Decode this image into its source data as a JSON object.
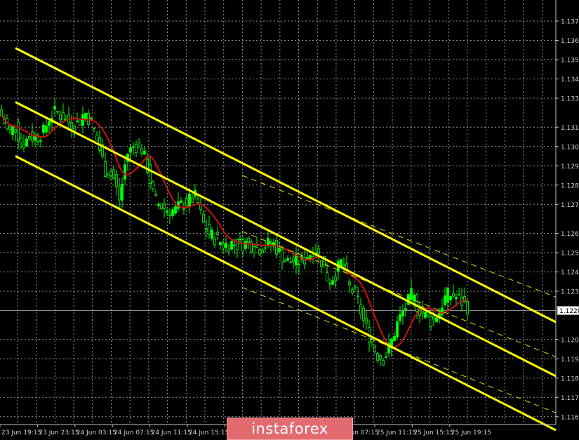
{
  "chart_data": {
    "type": "candlestick",
    "title": "",
    "xlabel": "",
    "ylabel": "",
    "ylim": [
      1.1162,
      1.1381
    ],
    "grid": true,
    "y_tick_labels": [
      "1.1370",
      "1.1360",
      "1.1350",
      "1.1340",
      "1.1330",
      "1.1315",
      "1.1305",
      "1.1295",
      "1.1285",
      "1.1275",
      "1.1260",
      "1.1250",
      "1.1240",
      "1.1230",
      "1.1205",
      "1.1195",
      "1.1185",
      "1.1175",
      "1.1165"
    ],
    "x_tick_labels": [
      "23 Jun 19:15",
      "23 Jun 23:15",
      "24 Jun 03:15",
      "24 Jun 07:15",
      "24 Jun 11:15",
      "24 Jun 15:15",
      "",
      "",
      "",
      "25 Jun 07:15",
      "25 Jun 11:15",
      "25 Jun 15:15",
      "25 Jun 19:15"
    ],
    "current_price": "1.1220",
    "close_prices": [
      1.1321,
      1.1312,
      1.1315,
      1.1306,
      1.131,
      1.131,
      1.1312,
      1.1321,
      1.1323,
      1.1319,
      1.1317,
      1.1317,
      1.1323,
      1.1317,
      1.1305,
      1.1292,
      1.129,
      1.1277,
      1.1301,
      1.1305,
      1.1306,
      1.1294,
      1.1277,
      1.1274,
      1.1272,
      1.1272,
      1.1275,
      1.1277,
      1.1279,
      1.1265,
      1.1259,
      1.1257,
      1.1254,
      1.1255,
      1.1254,
      1.1255,
      1.1254,
      1.1252,
      1.1254,
      1.1255,
      1.125,
      1.1245,
      1.1246,
      1.1245,
      1.1248,
      1.1252,
      1.1246,
      1.1235,
      1.1239,
      1.1246,
      1.1232,
      1.1228,
      1.1215,
      1.1206,
      1.1197,
      1.1195,
      1.1203,
      1.1214,
      1.1221,
      1.1228,
      1.1221,
      1.1217,
      1.1214,
      1.1221,
      1.1228,
      1.1228,
      1.1225,
      1.1222
    ],
    "regression_channel": [
      {
        "role": "upper",
        "start": 1.1356,
        "end": 1.1214,
        "style": "solid"
      },
      {
        "role": "middle",
        "start": 1.1328,
        "end": 1.1186,
        "style": "solid"
      },
      {
        "role": "lower",
        "start": 1.13,
        "end": 1.1158,
        "style": "solid"
      }
    ],
    "secondary_channel": [
      {
        "role": "upper",
        "start": 1.129,
        "end": 1.1227,
        "style": "dashed"
      },
      {
        "role": "middle",
        "start": 1.1261,
        "end": 1.1196,
        "style": "dashed"
      },
      {
        "role": "lower",
        "start": 1.1232,
        "end": 1.1167,
        "style": "dashed"
      }
    ],
    "moving_average": {
      "color": "#d01010"
    },
    "colors": {
      "candles": "#00ff00",
      "channel": "#ffff00",
      "grid": "#c8c8c8",
      "axis": "#c0c0c0",
      "current_line": "#8a8a9a"
    }
  },
  "watermark": {
    "text": "instaforex",
    "color": "#e26b70"
  }
}
